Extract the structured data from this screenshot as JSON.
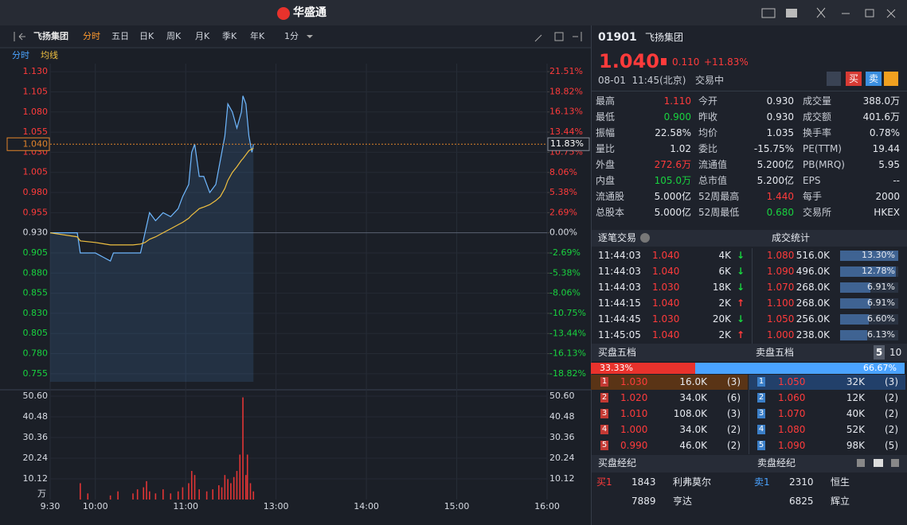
{
  "app": {
    "title": "华盛通"
  },
  "toolbar": {
    "tabs": [
      "分时",
      "五日",
      "日K",
      "周K",
      "月K",
      "季K",
      "年K",
      "1分"
    ]
  },
  "legend": [
    {
      "text": "分时",
      "color": "#4aa3ff"
    },
    {
      "text": "均线",
      "color": "#f0c040"
    }
  ],
  "chart_data": [
    {
      "type": "line",
      "xlim": [
        0,
        330
      ],
      "x": [
        0,
        18,
        20,
        30,
        40,
        42,
        55,
        60,
        63,
        66,
        70,
        75,
        80,
        85,
        88,
        92,
        94,
        96,
        99,
        102,
        106,
        110,
        113,
        116,
        118,
        121,
        124,
        127,
        128,
        130,
        132,
        134,
        135
      ],
      "series": [
        {
          "name": "分时",
          "color": "#6fb8ff",
          "values": [
            0.93,
            0.93,
            0.905,
            0.905,
            0.895,
            0.905,
            0.905,
            0.905,
            0.93,
            0.955,
            0.945,
            0.955,
            0.95,
            0.96,
            0.975,
            0.99,
            1.03,
            1.04,
            1.0,
            1.0,
            0.98,
            0.99,
            1.02,
            1.05,
            1.09,
            1.08,
            1.06,
            1.08,
            1.1,
            1.09,
            1.05,
            1.03,
            1.04
          ]
        },
        {
          "name": "均线",
          "color": "#f0c040",
          "values": [
            0.93,
            0.925,
            0.92,
            0.918,
            0.915,
            0.915,
            0.915,
            0.916,
            0.918,
            0.922,
            0.925,
            0.93,
            0.935,
            0.94,
            0.943,
            0.948,
            0.952,
            0.955,
            0.96,
            0.962,
            0.965,
            0.97,
            0.975,
            0.985,
            0.995,
            1.005,
            1.012,
            1.02,
            1.022,
            1.027,
            1.032,
            1.034,
            1.035
          ]
        }
      ],
      "ylim": [
        0.745,
        1.14
      ],
      "yticks": [
        {
          "value": 1.13,
          "label": "1.130"
        },
        {
          "value": 1.105,
          "label": "1.105"
        },
        {
          "value": 1.08,
          "label": "1.080"
        },
        {
          "value": 1.055,
          "label": "1.055"
        },
        {
          "value": 1.03,
          "label": "1.030"
        },
        {
          "value": 1.005,
          "label": "1.005"
        },
        {
          "value": 0.98,
          "label": "0.980"
        },
        {
          "value": 0.955,
          "label": "0.955"
        },
        {
          "value": 0.93,
          "label": "0.930"
        },
        {
          "value": 0.905,
          "label": "0.905"
        },
        {
          "value": 0.88,
          "label": "0.880"
        },
        {
          "value": 0.855,
          "label": "0.855"
        },
        {
          "value": 0.83,
          "label": "0.830"
        },
        {
          "value": 0.805,
          "label": "0.805"
        },
        {
          "value": 0.78,
          "label": "0.780"
        },
        {
          "value": 0.755,
          "label": "0.755"
        }
      ],
      "y2lim": [
        -19.89,
        22.58
      ],
      "y2ticks": [
        {
          "value": 21.51,
          "label": "21.51%"
        },
        {
          "value": 18.82,
          "label": "18.82%"
        },
        {
          "value": 16.13,
          "label": "16.13%"
        },
        {
          "value": 13.44,
          "label": "13.44%"
        },
        {
          "value": 10.75,
          "label": "10.75%"
        },
        {
          "value": 8.06,
          "label": "8.06%"
        },
        {
          "value": 5.38,
          "label": "5.38%"
        },
        {
          "value": 2.69,
          "label": "2.69%"
        },
        {
          "value": 0,
          "label": "0.00%"
        },
        {
          "value": -2.69,
          "label": "-2.69%"
        },
        {
          "value": -5.38,
          "label": "-5.38%"
        },
        {
          "value": -8.06,
          "label": "-8.06%"
        },
        {
          "value": -10.75,
          "label": "-10.75%"
        },
        {
          "value": -13.44,
          "label": "-13.44%"
        },
        {
          "value": -16.13,
          "label": "-16.13%"
        },
        {
          "value": -18.82,
          "label": "-18.82%"
        }
      ],
      "last_price": {
        "value": 1.04,
        "label": "1.040"
      },
      "last_change_pct": {
        "value": 11.83,
        "label": "11.83%"
      }
    },
    {
      "type": "bar",
      "color": "#e03535",
      "unit": "万",
      "xlim": [
        0,
        330
      ],
      "x": [
        20,
        25,
        40,
        45,
        55,
        58,
        62,
        64,
        66,
        70,
        75,
        80,
        85,
        88,
        92,
        94,
        96,
        99,
        104,
        108,
        112,
        114,
        116,
        118,
        120,
        122,
        124,
        126,
        128,
        130,
        131,
        133,
        135
      ],
      "values": [
        8,
        3,
        2,
        4,
        3,
        5,
        6,
        9,
        4,
        3,
        5,
        3,
        4,
        6,
        8,
        14,
        12,
        5,
        4,
        5,
        7,
        6,
        12,
        10,
        8,
        11,
        14,
        22,
        50,
        12,
        22,
        8,
        4
      ],
      "ylim": [
        0,
        50.6
      ],
      "yticks": [
        {
          "value": 50.6,
          "label": "50.60"
        },
        {
          "value": 40.48,
          "label": "40.48"
        },
        {
          "value": 30.36,
          "label": "30.36"
        },
        {
          "value": 20.24,
          "label": "20.24"
        },
        {
          "value": 10.12,
          "label": "10.12"
        }
      ],
      "xticks": [
        {
          "value": 0,
          "label": "9:30"
        },
        {
          "value": 30,
          "label": "10:00"
        },
        {
          "value": 90,
          "label": "11:00"
        },
        {
          "value": 150,
          "label": "13:00"
        },
        {
          "value": 210,
          "label": "14:00"
        },
        {
          "value": 270,
          "label": "15:00"
        },
        {
          "value": 330,
          "label": "16:00"
        }
      ]
    }
  ],
  "quote": {
    "code": "01901",
    "name": "飞扬集团",
    "price": "1.040",
    "change": "0.110",
    "change_pct": "+11.83%",
    "time": "08-01  11:45(北京)",
    "status": "交易中",
    "buy": "买",
    "sell": "卖"
  },
  "stats": [
    [
      {
        "label": "最高",
        "value": "1.110",
        "color": "#ff3b3b"
      },
      {
        "label": "今开",
        "value": "0.930"
      },
      {
        "label": "成交量",
        "value": "388.0万"
      }
    ],
    [
      {
        "label": "最低",
        "value": "0.900",
        "color": "#19d33f"
      },
      {
        "label": "昨收",
        "value": "0.930"
      },
      {
        "label": "成交额",
        "value": "401.6万"
      }
    ],
    [
      {
        "label": "振幅",
        "value": "22.58%"
      },
      {
        "label": "均价",
        "value": "1.035"
      },
      {
        "label": "换手率",
        "value": "0.78%"
      }
    ],
    [
      {
        "label": "量比",
        "value": "1.02"
      },
      {
        "label": "委比",
        "value": "-15.75%"
      },
      {
        "label": "PE(TTM)",
        "value": "19.44"
      }
    ],
    [
      {
        "label": "外盘",
        "value": "272.6万",
        "color": "#ff3b3b"
      },
      {
        "label": "流通值",
        "value": "5.200亿"
      },
      {
        "label": "PB(MRQ)",
        "value": "5.95"
      }
    ],
    [
      {
        "label": "内盘",
        "value": "105.0万",
        "color": "#19d33f"
      },
      {
        "label": "总市值",
        "value": "5.200亿"
      },
      {
        "label": "EPS",
        "value": "--"
      }
    ],
    [
      {
        "label": "流通股",
        "value": "5.000亿"
      },
      {
        "label": "52周最高",
        "value": "1.440",
        "color": "#ff3b3b"
      },
      {
        "label": "每手",
        "value": "2000"
      }
    ],
    [
      {
        "label": "总股本",
        "value": "5.000亿"
      },
      {
        "label": "52周最低",
        "value": "0.680",
        "color": "#19d33f"
      },
      {
        "label": "交易所",
        "value": "HKEX"
      }
    ]
  ],
  "trades": {
    "title": "逐笔交易",
    "rows": [
      {
        "time": "11:44:03",
        "price": "1.040",
        "volume": "4K",
        "arrow": "↓",
        "arrow_color": "#19d33f"
      },
      {
        "time": "11:44:03",
        "price": "1.040",
        "volume": "6K",
        "arrow": "↓",
        "arrow_color": "#19d33f"
      },
      {
        "time": "11:44:03",
        "price": "1.030",
        "volume": "18K",
        "arrow": "↓",
        "arrow_color": "#19d33f"
      },
      {
        "time": "11:44:15",
        "price": "1.040",
        "volume": "2K",
        "arrow": "↑",
        "arrow_color": "#ff3b3b"
      },
      {
        "time": "11:44:45",
        "price": "1.030",
        "volume": "20K",
        "arrow": "↓",
        "arrow_color": "#19d33f"
      },
      {
        "time": "11:45:05",
        "price": "1.040",
        "volume": "2K",
        "arrow": "↑",
        "arrow_color": "#ff3b3b"
      }
    ]
  },
  "deal_stats": {
    "title": "成交统计",
    "rows": [
      {
        "price": "1.080",
        "volume": "516.0K",
        "share": {
          "value": 13.3,
          "label": "13.30%"
        }
      },
      {
        "price": "1.090",
        "volume": "496.0K",
        "share": {
          "value": 12.78,
          "label": "12.78%"
        }
      },
      {
        "price": "1.070",
        "volume": "268.0K",
        "share": {
          "value": 6.91,
          "label": "6.91%"
        }
      },
      {
        "price": "1.100",
        "volume": "268.0K",
        "share": {
          "value": 6.91,
          "label": "6.91%"
        }
      },
      {
        "price": "1.050",
        "volume": "256.0K",
        "share": {
          "value": 6.6,
          "label": "6.60%"
        }
      },
      {
        "price": "1.000",
        "volume": "238.0K",
        "share": {
          "value": 6.13,
          "label": "6.13%"
        }
      }
    ]
  },
  "order_book": {
    "bid_title": "买盘五档",
    "ask_title": "卖盘五档",
    "depths": [
      "5",
      "10"
    ],
    "bid_ratio": {
      "value": 33.33,
      "label": "33.33%"
    },
    "ask_ratio": {
      "value": 66.67,
      "label": "66.67%"
    },
    "bids": [
      {
        "level": "1",
        "price": "1.030",
        "volume": "16.0K",
        "count": "(3)"
      },
      {
        "level": "2",
        "price": "1.020",
        "volume": "34.0K",
        "count": "(6)"
      },
      {
        "level": "3",
        "price": "1.010",
        "volume": "108.0K",
        "count": "(3)"
      },
      {
        "level": "4",
        "price": "1.000",
        "volume": "34.0K",
        "count": "(2)"
      },
      {
        "level": "5",
        "price": "0.990",
        "volume": "46.0K",
        "count": "(2)"
      }
    ],
    "asks": [
      {
        "level": "1",
        "price": "1.050",
        "volume": "32K",
        "count": "(3)"
      },
      {
        "level": "2",
        "price": "1.060",
        "volume": "12K",
        "count": "(2)"
      },
      {
        "level": "3",
        "price": "1.070",
        "volume": "40K",
        "count": "(2)"
      },
      {
        "level": "4",
        "price": "1.080",
        "volume": "52K",
        "count": "(2)"
      },
      {
        "level": "5",
        "price": "1.090",
        "volume": "98K",
        "count": "(5)"
      }
    ]
  },
  "brokers": {
    "buy_title": "买盘经纪",
    "sell_title": "卖盘经纪",
    "buy": [
      {
        "level": "买1",
        "id": "1843",
        "name": "利弗莫尔"
      },
      {
        "id": "7889",
        "name": "亨达"
      }
    ],
    "sell": [
      {
        "level": "卖1",
        "id": "2310",
        "name": "恒生"
      },
      {
        "id": "6825",
        "name": "辉立"
      }
    ]
  }
}
